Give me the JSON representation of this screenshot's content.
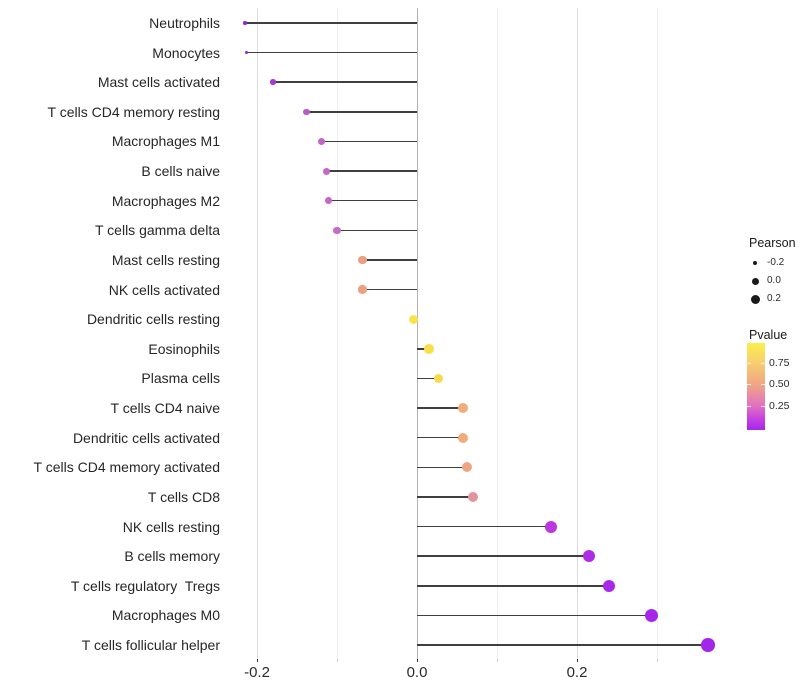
{
  "chart_data": {
    "type": "scatter",
    "subtype": "lollipop",
    "title": "",
    "xlabel": "",
    "ylabel": "",
    "grid": true,
    "legend_position": "right",
    "xlim": [
      -0.24,
      0.41
    ],
    "x_axis": {
      "tick_labels": [
        "-0.2",
        "0.0",
        "0.2"
      ],
      "tick_values": [
        -0.2,
        0.0,
        0.2
      ],
      "minor_tick_values": [
        -0.1,
        0.1,
        0.3
      ]
    },
    "encoding": {
      "size": "Pearson",
      "color": "Pvalue"
    },
    "points": [
      {
        "label": "Neutrophils",
        "pearson": -0.215,
        "pvalue": 0.03,
        "color": "#8F28E0",
        "size": 3.5
      },
      {
        "label": "Monocytes",
        "pearson": -0.213,
        "pvalue": 0.03,
        "color": "#8F28E0",
        "size": 3.5
      },
      {
        "label": "Mast cells activated",
        "pearson": -0.18,
        "pvalue": 0.1,
        "color": "#A23BD8",
        "size": 5.5
      },
      {
        "label": "T cells CD4 memory resting",
        "pearson": -0.138,
        "pvalue": 0.2,
        "color": "#BB5CC6",
        "size": 6.5
      },
      {
        "label": "Macrophages M1",
        "pearson": -0.119,
        "pvalue": 0.22,
        "color": "#C264C5",
        "size": 7
      },
      {
        "label": "B cells naive",
        "pearson": -0.113,
        "pvalue": 0.23,
        "color": "#C467C5",
        "size": 7
      },
      {
        "label": "Macrophages M2",
        "pearson": -0.111,
        "pvalue": 0.23,
        "color": "#C467C5",
        "size": 7
      },
      {
        "label": "T cells gamma delta",
        "pearson": -0.1,
        "pvalue": 0.25,
        "color": "#C76CC3",
        "size": 7.5
      },
      {
        "label": "Mast cells resting",
        "pearson": -0.068,
        "pvalue": 0.55,
        "color": "#ECA081",
        "size": 8.5
      },
      {
        "label": "NK cells activated",
        "pearson": -0.068,
        "pvalue": 0.55,
        "color": "#ECA081",
        "size": 8.5
      },
      {
        "label": "Dendritic cells resting",
        "pearson": -0.005,
        "pvalue": 0.95,
        "color": "#F8E44A",
        "size": 9
      },
      {
        "label": "Eosinophils",
        "pearson": 0.015,
        "pvalue": 0.92,
        "color": "#F7E049",
        "size": 9.5
      },
      {
        "label": "Plasma cells",
        "pearson": 0.027,
        "pvalue": 0.87,
        "color": "#F6D94D",
        "size": 9.5
      },
      {
        "label": "T cells CD4 naive",
        "pearson": 0.057,
        "pvalue": 0.63,
        "color": "#F0AC7B",
        "size": 10
      },
      {
        "label": "Dendritic cells activated",
        "pearson": 0.057,
        "pvalue": 0.63,
        "color": "#F0AC7B",
        "size": 10
      },
      {
        "label": "T cells CD4 memory activated",
        "pearson": 0.063,
        "pvalue": 0.58,
        "color": "#EEA584",
        "size": 10
      },
      {
        "label": "T cells CD8",
        "pearson": 0.07,
        "pvalue": 0.5,
        "color": "#E4949B",
        "size": 10.5
      },
      {
        "label": "NK cells resting",
        "pearson": 0.168,
        "pvalue": 0.15,
        "color": "#BB37E1",
        "size": 12
      },
      {
        "label": "B cells memory",
        "pearson": 0.215,
        "pvalue": 0.09,
        "color": "#AD2CE6",
        "size": 12.5
      },
      {
        "label": "T cells regulatory  Tregs",
        "pearson": 0.24,
        "pvalue": 0.06,
        "color": "#A929E8",
        "size": 12.5
      },
      {
        "label": "Macrophages M0",
        "pearson": 0.293,
        "pvalue": 0.04,
        "color": "#A627EA",
        "size": 13
      },
      {
        "label": "T cells follicular helper",
        "pearson": 0.364,
        "pvalue": 0.02,
        "color": "#A326EB",
        "size": 13.5
      }
    ],
    "legend": {
      "pearson": {
        "title": "Pearson",
        "entries": [
          {
            "label": "-0.2"
          },
          {
            "label": "0.0"
          },
          {
            "label": "0.2"
          }
        ]
      },
      "pvalue": {
        "title": "Pvalue",
        "tick_labels": [
          "0.75",
          "0.50",
          "0.25"
        ],
        "gradient_top_to_bottom": [
          "#F9F04B",
          "#F8CF6F",
          "#F0A585",
          "#E272C0",
          "#C340E0",
          "#A527EE"
        ]
      }
    },
    "style_colors": {
      "segment": "#3f3f3f",
      "grid_major": "#dcdcdc",
      "grid_minor": "#efefef",
      "zero_line": "#b3b3b3",
      "tick_major": "#333333",
      "tick_minor": "#cccccc",
      "legend_dot": "#1a1a1a"
    }
  }
}
